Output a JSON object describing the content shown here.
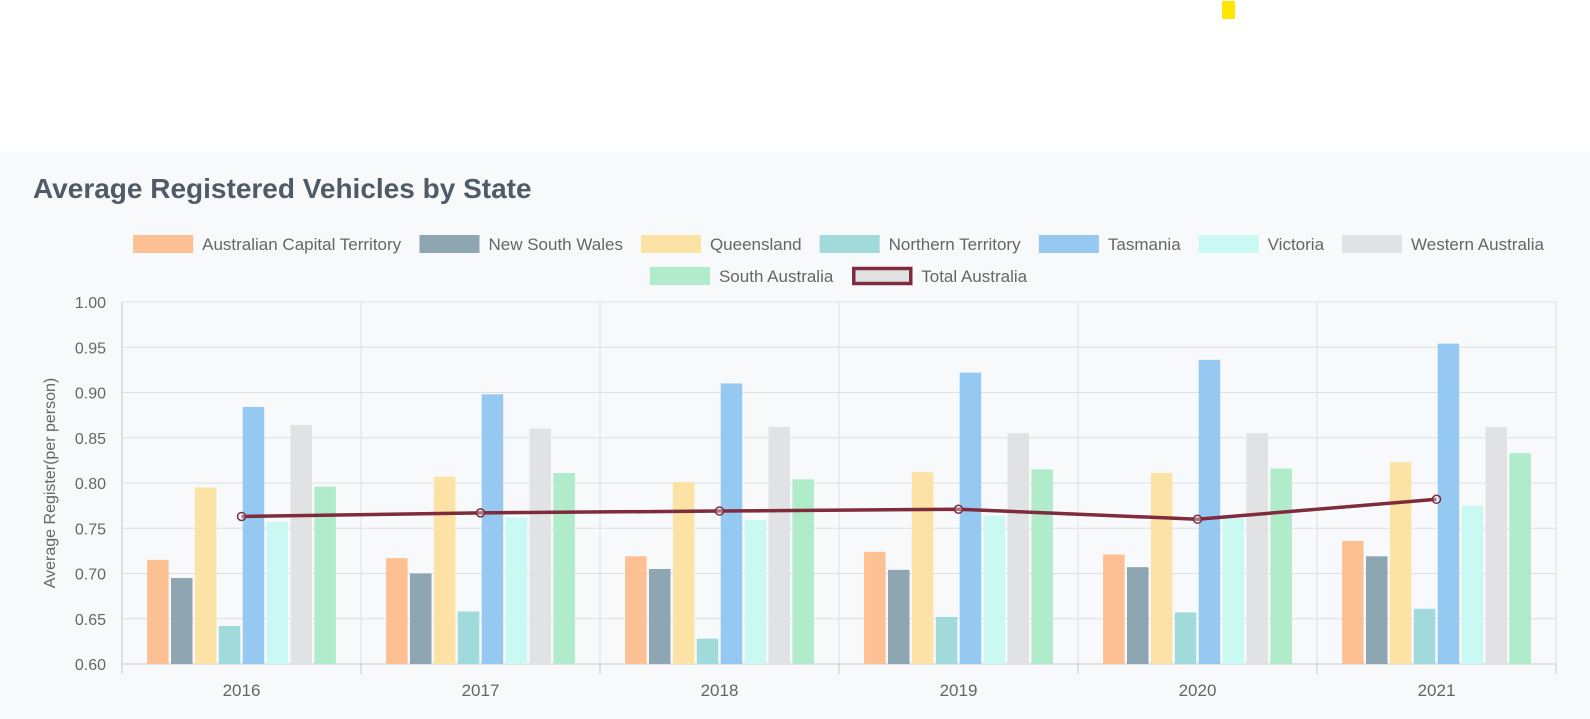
{
  "marker_color": "#ffe600",
  "panel": {
    "title": "Average Registered Vehicles by State"
  },
  "chart_data": {
    "type": "bar",
    "title": "Average Registered Vehicles by State",
    "ylabel": "Average Register(per person)",
    "xlabel": "",
    "ylim": [
      0.6,
      1.0
    ],
    "yticks": [
      "0.60",
      "0.65",
      "0.70",
      "0.75",
      "0.80",
      "0.85",
      "0.90",
      "0.95",
      "1.00"
    ],
    "grid": true,
    "legend": "top",
    "categories": [
      "2016",
      "2017",
      "2018",
      "2019",
      "2020",
      "2021"
    ],
    "series": [
      {
        "name": "Australian Capital Territory",
        "type": "bar",
        "color": "#fcc092",
        "values": [
          0.715,
          0.717,
          0.719,
          0.724,
          0.721,
          0.736
        ]
      },
      {
        "name": "New South Wales",
        "type": "bar",
        "color": "#8ea5b2",
        "values": [
          0.695,
          0.7,
          0.705,
          0.704,
          0.707,
          0.719
        ]
      },
      {
        "name": "Queensland",
        "type": "bar",
        "color": "#fde2a5",
        "values": [
          0.795,
          0.807,
          0.801,
          0.812,
          0.811,
          0.823
        ]
      },
      {
        "name": "Northern Territory",
        "type": "bar",
        "color": "#a0dadb",
        "values": [
          0.642,
          0.658,
          0.628,
          0.652,
          0.657,
          0.661
        ]
      },
      {
        "name": "Tasmania",
        "type": "bar",
        "color": "#96c9f1",
        "values": [
          0.884,
          0.898,
          0.91,
          0.922,
          0.936,
          0.954
        ]
      },
      {
        "name": "Victoria",
        "type": "bar",
        "color": "#c9f9f2",
        "values": [
          0.757,
          0.762,
          0.759,
          0.764,
          0.761,
          0.775
        ]
      },
      {
        "name": "Western Australia",
        "type": "bar",
        "color": "#e1e2e4",
        "values": [
          0.864,
          0.86,
          0.862,
          0.855,
          0.855,
          0.862
        ]
      },
      {
        "name": "South Australia",
        "type": "bar",
        "color": "#b0ecca",
        "values": [
          0.796,
          0.811,
          0.804,
          0.815,
          0.816,
          0.833
        ]
      },
      {
        "name": "Total Australia",
        "type": "line",
        "color": "#7f2b3c",
        "values": [
          0.763,
          0.767,
          0.769,
          0.771,
          0.76,
          0.782
        ]
      }
    ]
  }
}
